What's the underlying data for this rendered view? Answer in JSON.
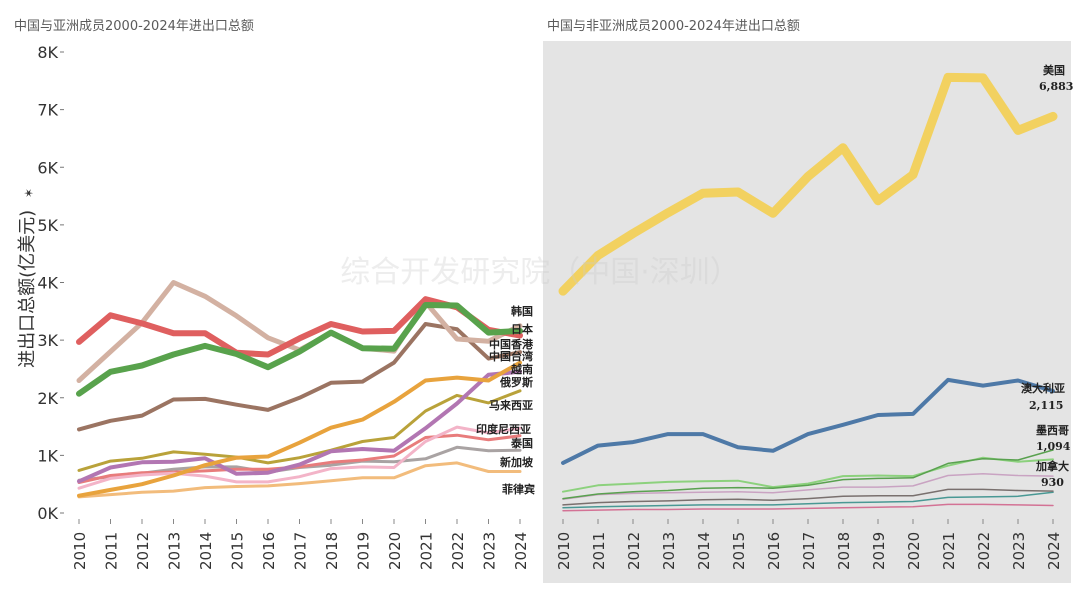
{
  "chart_data": [
    {
      "type": "line",
      "title": "中国与亚洲成员2000-2024年进出口总额",
      "ylabel": "进出口总额(亿美元)",
      "sort_marker": "✶",
      "x": [
        "2010",
        "2011",
        "2012",
        "2013",
        "2014",
        "2015",
        "2016",
        "2017",
        "2018",
        "2019",
        "2020",
        "2021",
        "2022",
        "2023",
        "2024"
      ],
      "ylim": [
        0,
        8000
      ],
      "yticks": [
        0,
        1000,
        2000,
        3000,
        4000,
        5000,
        6000,
        7000,
        8000
      ],
      "ytick_labels": [
        "0K",
        "1K",
        "2K",
        "3K",
        "4K",
        "5K",
        "6K",
        "7K",
        "8K"
      ],
      "series": [
        {
          "name": "韩国",
          "color": "#d3b1a2",
          "width": 5,
          "values": [
            2300,
            2800,
            3300,
            4000,
            3760,
            3420,
            3040,
            2830,
            3120,
            2860,
            2810,
            3660,
            3020,
            2980,
            3250
          ]
        },
        {
          "name": "日本",
          "color": "#df5f5f",
          "width": 6,
          "values": [
            2970,
            3430,
            3290,
            3120,
            3120,
            2780,
            2750,
            3030,
            3280,
            3150,
            3160,
            3710,
            3570,
            3180,
            3080
          ]
        },
        {
          "name": "中国香港",
          "color": "#58a24c",
          "width": 6,
          "values": [
            2070,
            2450,
            2560,
            2750,
            2900,
            2760,
            2530,
            2800,
            3130,
            2860,
            2850,
            3610,
            3600,
            3130,
            3160
          ]
        },
        {
          "name": "中国台湾",
          "color": "#9b7462",
          "width": 4,
          "values": [
            1450,
            1600,
            1690,
            1970,
            1980,
            1880,
            1790,
            2000,
            2260,
            2280,
            2610,
            3280,
            3190,
            2680,
            2790
          ]
        },
        {
          "name": "越南",
          "color": "#e8a33d",
          "width": 4,
          "values": [
            300,
            400,
            500,
            650,
            830,
            960,
            980,
            1220,
            1480,
            1620,
            1930,
            2300,
            2350,
            2300,
            2610
          ]
        },
        {
          "name": "俄罗斯",
          "color": "#b276b2",
          "width": 4,
          "values": [
            550,
            790,
            880,
            890,
            950,
            680,
            700,
            840,
            1070,
            1110,
            1080,
            1470,
            1900,
            2400,
            2450
          ]
        },
        {
          "name": "马来西亚",
          "color": "#b9a23a",
          "width": 3,
          "values": [
            740,
            900,
            950,
            1060,
            1020,
            970,
            870,
            960,
            1090,
            1240,
            1310,
            1770,
            2040,
            1910,
            2120
          ]
        },
        {
          "name": "印度尼西亚",
          "color": "#f3b4c8",
          "width": 3,
          "values": [
            430,
            600,
            660,
            690,
            640,
            540,
            540,
            630,
            770,
            800,
            790,
            1240,
            1490,
            1390,
            1470
          ]
        },
        {
          "name": "泰国",
          "color": "#e87c7c",
          "width": 3,
          "values": [
            530,
            650,
            700,
            710,
            730,
            760,
            760,
            800,
            880,
            920,
            990,
            1310,
            1350,
            1270,
            1340
          ]
        },
        {
          "name": "新加坡",
          "color": "#a9a3a3",
          "width": 3,
          "values": [
            570,
            630,
            690,
            760,
            800,
            800,
            710,
            790,
            830,
            900,
            890,
            940,
            1140,
            1080,
            1090
          ]
        },
        {
          "name": "菲律宾",
          "color": "#f2bc7c",
          "width": 3,
          "values": [
            280,
            320,
            360,
            380,
            440,
            460,
            470,
            510,
            560,
            610,
            610,
            820,
            870,
            720,
            720
          ]
        }
      ]
    },
    {
      "type": "line",
      "title": "中国与非亚洲成员2000-2024年进出口总额",
      "x": [
        "2010",
        "2011",
        "2012",
        "2013",
        "2014",
        "2015",
        "2016",
        "2017",
        "2018",
        "2019",
        "2020",
        "2021",
        "2022",
        "2023",
        "2024"
      ],
      "ylim": [
        0,
        8000
      ],
      "series": [
        {
          "name": "美国",
          "value_label": "6,883",
          "color": "#f2d160",
          "width": 9,
          "values": [
            3850,
            4470,
            4850,
            5210,
            5550,
            5570,
            5200,
            5840,
            6340,
            5420,
            5870,
            7560,
            7550,
            6640,
            6883
          ]
        },
        {
          "name": "澳大利亚",
          "value_label": "2,115",
          "color": "#4e79a7",
          "width": 4,
          "values": [
            870,
            1170,
            1230,
            1370,
            1370,
            1140,
            1080,
            1370,
            1530,
            1700,
            1720,
            2310,
            2210,
            2300,
            2115
          ]
        },
        {
          "name": "墨西哥",
          "value_label": "1,094",
          "color": "#59a14f",
          "width": 1.5,
          "values": [
            250,
            330,
            370,
            390,
            430,
            440,
            430,
            480,
            580,
            600,
            610,
            860,
            940,
            920,
            1094
          ]
        },
        {
          "name": "加拿大",
          "value_label": "930",
          "color": "#8cd17d",
          "width": 2,
          "values": [
            370,
            480,
            510,
            540,
            550,
            560,
            450,
            510,
            640,
            650,
            640,
            820,
            960,
            890,
            930
          ]
        },
        {
          "name": "series-5",
          "color": "#c9a3c2",
          "width": 1.5,
          "values": [
            240,
            320,
            340,
            350,
            360,
            370,
            350,
            400,
            450,
            450,
            470,
            650,
            680,
            650,
            640
          ]
        },
        {
          "name": "series-6",
          "color": "#79706e",
          "width": 1.5,
          "values": [
            140,
            180,
            200,
            210,
            230,
            240,
            220,
            250,
            290,
            300,
            300,
            410,
            410,
            390,
            380
          ]
        },
        {
          "name": "series-7",
          "color": "#499894",
          "width": 1.5,
          "values": [
            90,
            110,
            120,
            130,
            140,
            140,
            140,
            160,
            180,
            190,
            200,
            270,
            280,
            290,
            360
          ]
        },
        {
          "name": "series-8",
          "color": "#d37295",
          "width": 1.5,
          "values": [
            40,
            50,
            60,
            60,
            70,
            70,
            70,
            80,
            90,
            100,
            110,
            150,
            150,
            140,
            130
          ]
        }
      ]
    }
  ],
  "watermark": "综合开发研究院（中国·深圳）"
}
